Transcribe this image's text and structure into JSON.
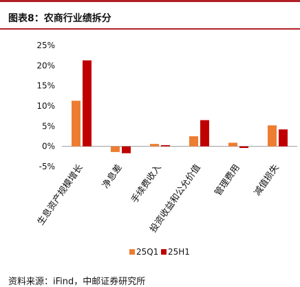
{
  "header": {
    "title": "图表8：农商行业绩拆分"
  },
  "footer": {
    "source": "资料来源：iFind，中邮证券研究所"
  },
  "colors": {
    "accent_red": "#b01f24",
    "series_orange": "#ed7d31",
    "series_red": "#c00000"
  },
  "chart_data": {
    "type": "bar",
    "title": "",
    "xlabel": "",
    "ylabel": "",
    "categories": [
      "生息资产规模增长",
      "净息差",
      "手续费收入",
      "投资收益和公允价值",
      "管理费用",
      "减值损失"
    ],
    "series": [
      {
        "name": "25Q1",
        "color": "#ed7d31",
        "values": [
          11.3,
          -1.4,
          0.6,
          2.5,
          0.9,
          5.2
        ]
      },
      {
        "name": "25H1",
        "color": "#c00000",
        "values": [
          21.3,
          -1.7,
          0.3,
          6.5,
          -0.4,
          4.2
        ]
      }
    ],
    "ylim": [
      -5,
      25
    ],
    "yticks": [
      -5,
      0,
      5,
      10,
      15,
      20,
      25
    ],
    "ytick_labels": [
      "-5%",
      "0%",
      "5%",
      "10%",
      "15%",
      "20%",
      "25%"
    ],
    "grid": false,
    "legend": "bottom-center"
  }
}
